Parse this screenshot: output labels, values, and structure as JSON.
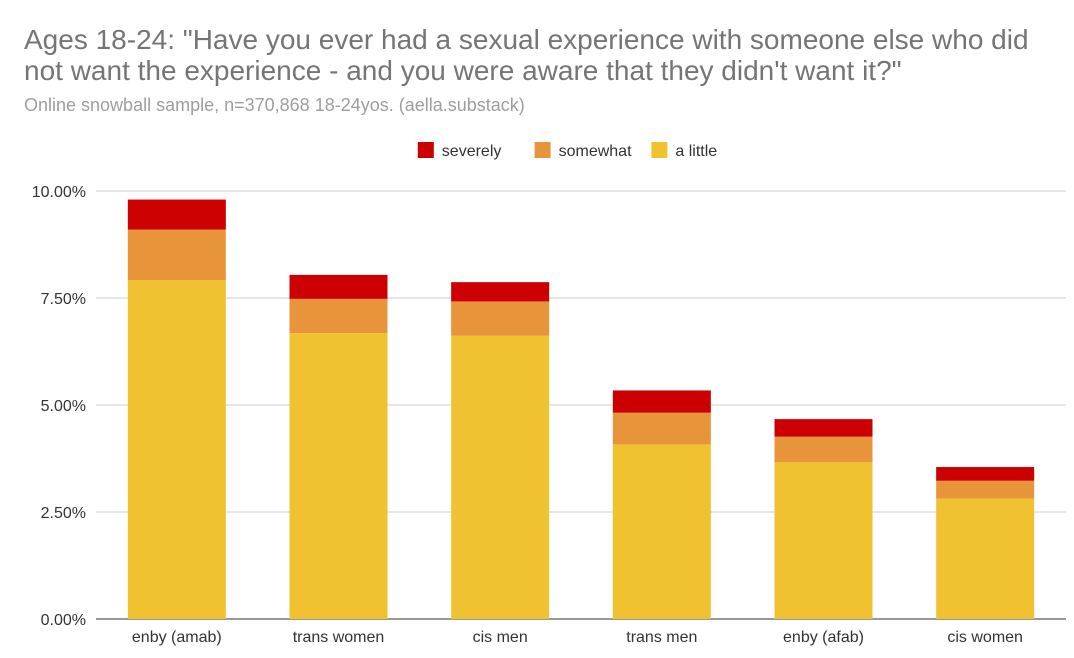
{
  "chart_data": {
    "type": "bar",
    "stacked": true,
    "title": "Ages 18-24: \"Have you ever had a sexual experience with someone else who did not want the experience - and you were aware that they didn't want it?\"",
    "subtitle": "Online snowball sample, n=370,868 18-24yos. (aella.substack)",
    "categories": [
      "enby (amab)",
      "trans women",
      "cis men",
      "trans men",
      "enby (afab)",
      "cis women"
    ],
    "series": [
      {
        "name": "a little",
        "color": "#f0c232",
        "values": [
          7.92,
          6.68,
          6.62,
          4.08,
          3.66,
          2.81
        ]
      },
      {
        "name": "somewhat",
        "color": "#e8943a",
        "values": [
          1.18,
          0.8,
          0.8,
          0.74,
          0.6,
          0.42
        ]
      },
      {
        "name": "severely",
        "color": "#cc0000",
        "values": [
          0.7,
          0.56,
          0.45,
          0.52,
          0.41,
          0.32
        ]
      }
    ],
    "legend_order": [
      "severely",
      "somewhat",
      "a little"
    ],
    "legend_position": "top",
    "yticks": [
      "0.00%",
      "2.50%",
      "5.00%",
      "7.50%",
      "10.00%"
    ],
    "ylim": [
      0,
      10
    ],
    "grid": true
  }
}
